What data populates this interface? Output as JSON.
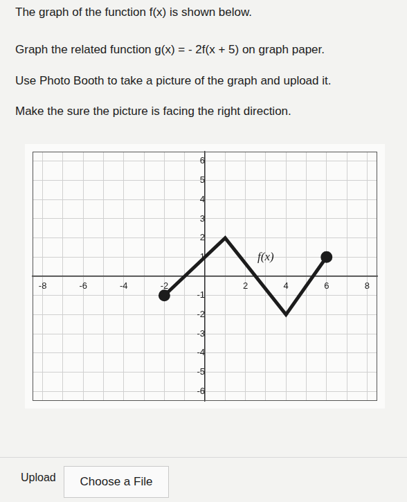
{
  "question": {
    "lines": [
      "The graph of the function f(x) is shown below.",
      "Graph the related function g(x) = - 2f(x + 5) on graph paper.",
      "Use Photo Booth to take a picture of the graph and upload it.",
      "Make the sure the picture is facing the right direction."
    ]
  },
  "chart_data": {
    "type": "line",
    "x": [
      -2,
      1,
      4,
      6
    ],
    "values": [
      -1,
      2,
      -2,
      1
    ],
    "color": "#1c1c1c",
    "marker": "endpoints",
    "xlim": [
      -8.5,
      8.5
    ],
    "xticks": [
      -8,
      -6,
      -4,
      -2,
      2,
      4,
      6,
      8
    ],
    "ylim": [
      -6.5,
      6.5
    ],
    "yticks": [
      -6,
      -5,
      -4,
      -3,
      -2,
      -1,
      1,
      2,
      3,
      4,
      5,
      6
    ],
    "grid": true,
    "annotations": [
      {
        "text": "f(x)",
        "x": 3,
        "y": 1
      }
    ]
  },
  "upload": {
    "label": "Upload",
    "button": "Choose a File"
  }
}
